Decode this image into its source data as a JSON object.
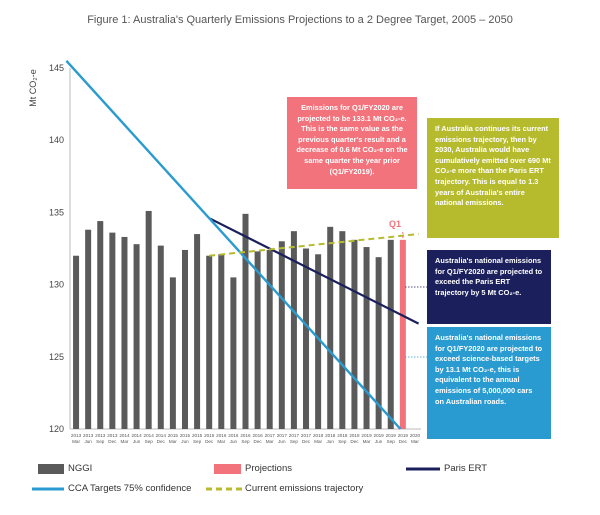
{
  "title": "Figure 1: Australia's Quarterly Emissions Projections to a 2 Degree Target, 2005 – 2050",
  "annotations": {
    "projection_note": "Emissions for Q1/FY2020 are projected to be 133.1 Mt CO₂-e. This is the same value as the previous quarter's result and a decrease of 0.6 Mt CO₂-e on the same quarter the year prior (Q1/FY2019).",
    "trajectory_note": "If Australia continues its current emissions trajectory, then by 2030, Australia would have cumulatively emitted over 690 Mt CO₂-e more than the Paris ERT trajectory. This is equal to 1.3 years of Australia's entire national emissions.",
    "paris_note": "Australia's national emissions for Q1/FY2020 are projected to exceed the Paris ERT trajectory by 5 Mt CO₂-e.",
    "science_note": "Australia's national emissions for Q1/FY2020 are projected to exceed science-based targets by 13.1 Mt CO₂-e, this is equivalent to the annual emissions of 5,000,000 cars on Australian roads.",
    "q1_marker": "Q1"
  },
  "colors": {
    "nggi": "#5a5a5a",
    "projection": "#f2737b",
    "paris": "#1b1f5c",
    "cca": "#2a9bd0",
    "trajectory": "#b6bb2e"
  },
  "chart_data": {
    "type": "bar",
    "xlabel": "",
    "ylabel": "Mt CO₂-e",
    "ylim": [
      120,
      145
    ],
    "yticks": [
      120,
      125,
      130,
      135,
      140,
      145
    ],
    "grid": false,
    "legend_position": "bottom",
    "categories": [
      {
        "year": "2013",
        "q": "Mar"
      },
      {
        "year": "2013",
        "q": "Jun"
      },
      {
        "year": "2013",
        "q": "Sep"
      },
      {
        "year": "2013",
        "q": "Dec"
      },
      {
        "year": "2014",
        "q": "Mar"
      },
      {
        "year": "2014",
        "q": "Jun"
      },
      {
        "year": "2014",
        "q": "Sep"
      },
      {
        "year": "2014",
        "q": "Dec"
      },
      {
        "year": "2015",
        "q": "Mar"
      },
      {
        "year": "2015",
        "q": "Jun"
      },
      {
        "year": "2015",
        "q": "Sep"
      },
      {
        "year": "2015",
        "q": "Dec"
      },
      {
        "year": "2016",
        "q": "Mar"
      },
      {
        "year": "2016",
        "q": "Jun"
      },
      {
        "year": "2016",
        "q": "Sep"
      },
      {
        "year": "2016",
        "q": "Dec"
      },
      {
        "year": "2017",
        "q": "Mar"
      },
      {
        "year": "2017",
        "q": "Jun"
      },
      {
        "year": "2017",
        "q": "Sep"
      },
      {
        "year": "2017",
        "q": "Dec"
      },
      {
        "year": "2018",
        "q": "Mar"
      },
      {
        "year": "2018",
        "q": "Jun"
      },
      {
        "year": "2018",
        "q": "Sep"
      },
      {
        "year": "2018",
        "q": "Dec"
      },
      {
        "year": "2019",
        "q": "Mar"
      },
      {
        "year": "2019",
        "q": "Jun"
      },
      {
        "year": "2019",
        "q": "Sep"
      },
      {
        "year": "2019",
        "q": "Dec"
      },
      {
        "year": "2020",
        "q": "Mar"
      }
    ],
    "series": [
      {
        "name": "NGGI",
        "kind": "bar",
        "values": [
          132.0,
          133.8,
          134.4,
          133.6,
          133.3,
          132.8,
          135.1,
          132.7,
          130.5,
          132.4,
          133.5,
          132.0,
          132.1,
          130.5,
          134.9,
          132.3,
          132.4,
          133.0,
          133.7,
          132.5,
          132.1,
          134.0,
          133.7,
          133.1,
          132.6,
          131.9,
          133.1,
          null,
          null
        ]
      },
      {
        "name": "Projections",
        "kind": "bar",
        "values": [
          null,
          null,
          null,
          null,
          null,
          null,
          null,
          null,
          null,
          null,
          null,
          null,
          null,
          null,
          null,
          null,
          null,
          null,
          null,
          null,
          null,
          null,
          null,
          null,
          null,
          null,
          null,
          133.1,
          null
        ]
      },
      {
        "name": "Paris ERT",
        "kind": "line",
        "points": [
          {
            "x": 11.5,
            "y": 134.6
          },
          {
            "x": 28.8,
            "y": 127.3
          }
        ]
      },
      {
        "name": "CCA Targets 75% confidence",
        "kind": "line",
        "points": [
          {
            "x": -0.3,
            "y": 145.5
          },
          {
            "x": 27.3,
            "y": 120.0
          }
        ]
      },
      {
        "name": "Current emissions trajectory",
        "kind": "dashed-line",
        "points": [
          {
            "x": 11.5,
            "y": 132.0
          },
          {
            "x": 28.8,
            "y": 133.5
          }
        ]
      }
    ]
  }
}
